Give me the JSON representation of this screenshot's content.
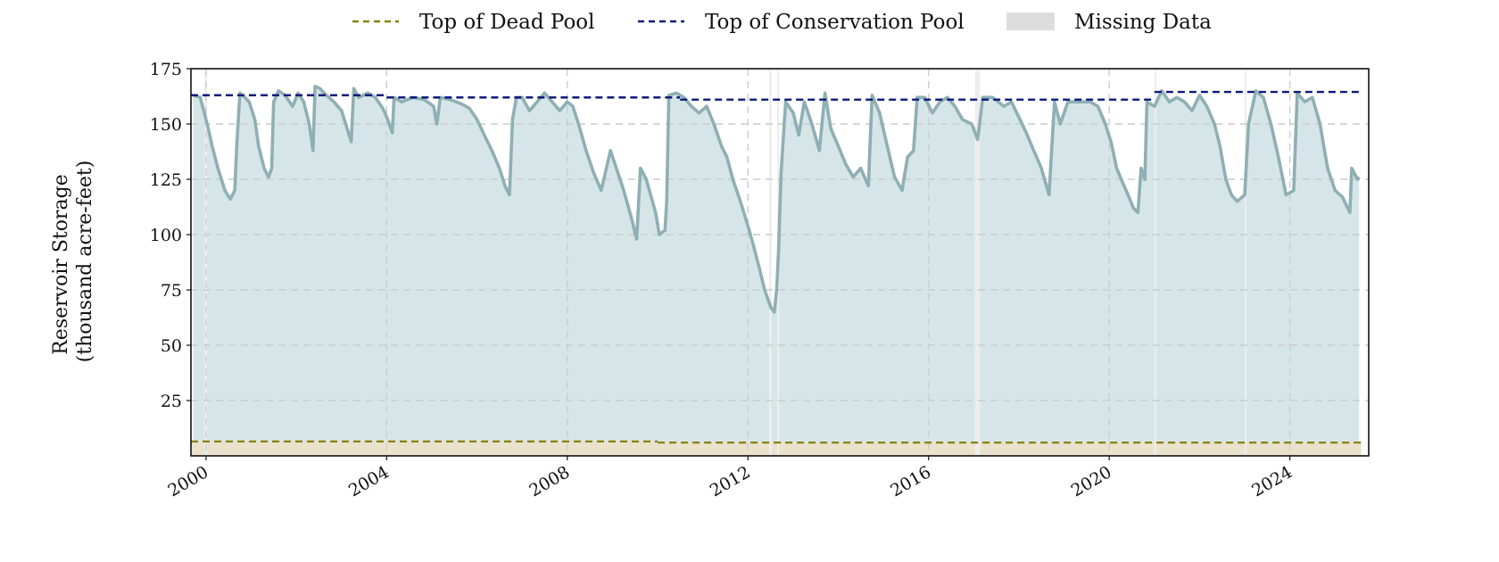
{
  "chart_data": {
    "type": "area",
    "title": "",
    "xlabel": "",
    "ylabel_lines": [
      "Reservoir Storage",
      "(thousand acre-feet)"
    ],
    "x_range": [
      "1999-09-01",
      "2025-09-30"
    ],
    "ylim": [
      0,
      175
    ],
    "y_ticks": [
      25,
      50,
      75,
      100,
      125,
      150,
      175
    ],
    "x_tick_years": [
      2000,
      2004,
      2008,
      2012,
      2016,
      2020,
      2024
    ],
    "grid": true,
    "legend_position": "top-center",
    "legend": [
      {
        "label": "Top of Dead Pool",
        "kind": "dashed-line",
        "color": "#8B8000"
      },
      {
        "label": "Top of Conservation Pool",
        "kind": "dashed-line",
        "color": "#0B1A7A"
      },
      {
        "label": "Missing Data",
        "kind": "patch",
        "color": "#DDDDDD"
      }
    ],
    "colors": {
      "storage_line": "#8FAFB4",
      "storage_fill": "#D6E6E8",
      "dead_pool_fill": "#EAE2CC",
      "missing": "#EDEDED",
      "grid": "#CCCCCC"
    },
    "series": [
      {
        "name": "Reservoir Storage",
        "values_unit": "thousand acre-feet",
        "points": [
          [
            "1999-09-20",
            163
          ],
          [
            "1999-11-15",
            162
          ],
          [
            "2000-01-10",
            150
          ],
          [
            "2000-02-20",
            140
          ],
          [
            "2000-04-01",
            131
          ],
          [
            "2000-06-01",
            120
          ],
          [
            "2000-07-15",
            116
          ],
          [
            "2000-08-20",
            120
          ],
          [
            "2000-09-05",
            140
          ],
          [
            "2000-10-01",
            164
          ],
          [
            "2000-11-10",
            162
          ],
          [
            "2000-12-15",
            160
          ],
          [
            "2001-01-30",
            152
          ],
          [
            "2001-03-01",
            140
          ],
          [
            "2001-04-15",
            130
          ],
          [
            "2001-05-20",
            126
          ],
          [
            "2001-06-15",
            130
          ],
          [
            "2001-07-01",
            160
          ],
          [
            "2001-08-10",
            165
          ],
          [
            "2001-10-01",
            163
          ],
          [
            "2001-12-01",
            158
          ],
          [
            "2002-01-15",
            164
          ],
          [
            "2002-03-01",
            160
          ],
          [
            "2002-04-15",
            150
          ],
          [
            "2002-05-15",
            138
          ],
          [
            "2002-06-01",
            167
          ],
          [
            "2002-07-10",
            166
          ],
          [
            "2002-09-01",
            163
          ],
          [
            "2002-11-01",
            160
          ],
          [
            "2003-01-01",
            156
          ],
          [
            "2003-02-15",
            148
          ],
          [
            "2003-03-20",
            142
          ],
          [
            "2003-04-10",
            166
          ],
          [
            "2003-05-20",
            162
          ],
          [
            "2003-08-01",
            164
          ],
          [
            "2003-10-01",
            162
          ],
          [
            "2003-12-01",
            157
          ],
          [
            "2004-01-10",
            152
          ],
          [
            "2004-02-15",
            146
          ],
          [
            "2004-03-01",
            162
          ],
          [
            "2004-05-01",
            160
          ],
          [
            "2004-08-01",
            162
          ],
          [
            "2004-11-01",
            161
          ],
          [
            "2005-01-15",
            158
          ],
          [
            "2005-02-10",
            150
          ],
          [
            "2005-03-10",
            162
          ],
          [
            "2005-06-01",
            161
          ],
          [
            "2005-09-01",
            159
          ],
          [
            "2005-11-01",
            157
          ],
          [
            "2006-01-01",
            152
          ],
          [
            "2006-03-01",
            145
          ],
          [
            "2006-05-01",
            138
          ],
          [
            "2006-07-01",
            130
          ],
          [
            "2006-08-15",
            122
          ],
          [
            "2006-09-20",
            118
          ],
          [
            "2006-10-15",
            152
          ],
          [
            "2006-11-15",
            162
          ],
          [
            "2007-01-01",
            162
          ],
          [
            "2007-03-01",
            156
          ],
          [
            "2007-05-01",
            160
          ],
          [
            "2007-07-01",
            164
          ],
          [
            "2007-09-01",
            160
          ],
          [
            "2007-11-01",
            156
          ],
          [
            "2008-01-01",
            160
          ],
          [
            "2008-02-15",
            158
          ],
          [
            "2008-04-01",
            150
          ],
          [
            "2008-06-01",
            138
          ],
          [
            "2008-08-01",
            128
          ],
          [
            "2008-10-01",
            120
          ],
          [
            "2008-12-15",
            138
          ],
          [
            "2009-02-01",
            130
          ],
          [
            "2009-04-01",
            120
          ],
          [
            "2009-06-01",
            108
          ],
          [
            "2009-07-15",
            98
          ],
          [
            "2009-08-15",
            130
          ],
          [
            "2009-10-01",
            125
          ],
          [
            "2009-12-15",
            110
          ],
          [
            "2010-01-15",
            100
          ],
          [
            "2010-03-01",
            102
          ],
          [
            "2010-03-15",
            115
          ],
          [
            "2010-04-01",
            163
          ],
          [
            "2010-06-01",
            164
          ],
          [
            "2010-08-01",
            162
          ],
          [
            "2010-10-01",
            158
          ],
          [
            "2010-12-01",
            155
          ],
          [
            "2011-02-01",
            158
          ],
          [
            "2011-04-01",
            150
          ],
          [
            "2011-06-01",
            140
          ],
          [
            "2011-07-15",
            135
          ],
          [
            "2011-09-01",
            125
          ],
          [
            "2011-11-01",
            115
          ],
          [
            "2012-01-01",
            104
          ],
          [
            "2012-02-15",
            95
          ],
          [
            "2012-04-01",
            85
          ],
          [
            "2012-05-15",
            75
          ],
          [
            "2012-06-15",
            70
          ],
          [
            "2012-07-05",
            67
          ],
          [
            "2012-08-01",
            65
          ],
          [
            "2012-08-20",
            75
          ],
          [
            "2012-09-05",
            93
          ],
          [
            "2012-09-25",
            128
          ],
          [
            "2012-11-01",
            160
          ],
          [
            "2013-01-01",
            155
          ],
          [
            "2013-02-15",
            145
          ],
          [
            "2013-04-01",
            160
          ],
          [
            "2013-06-01",
            150
          ],
          [
            "2013-08-01",
            138
          ],
          [
            "2013-09-15",
            164
          ],
          [
            "2013-11-01",
            148
          ],
          [
            "2014-01-01",
            140
          ],
          [
            "2014-03-01",
            132
          ],
          [
            "2014-05-01",
            126
          ],
          [
            "2014-07-01",
            130
          ],
          [
            "2014-09-01",
            122
          ],
          [
            "2014-10-01",
            163
          ],
          [
            "2014-12-01",
            155
          ],
          [
            "2015-02-01",
            140
          ],
          [
            "2015-04-01",
            126
          ],
          [
            "2015-06-01",
            120
          ],
          [
            "2015-07-15",
            135
          ],
          [
            "2015-09-01",
            138
          ],
          [
            "2015-10-01",
            162
          ],
          [
            "2015-12-01",
            162
          ],
          [
            "2016-02-01",
            155
          ],
          [
            "2016-04-01",
            160
          ],
          [
            "2016-06-01",
            162
          ],
          [
            "2016-08-01",
            158
          ],
          [
            "2016-10-01",
            152
          ],
          [
            "2016-12-15",
            150
          ],
          [
            "2017-02-01",
            143
          ],
          [
            "2017-03-15",
            162
          ],
          [
            "2017-06-01",
            162
          ],
          [
            "2017-09-01",
            158
          ],
          [
            "2017-11-01",
            160
          ],
          [
            "2018-01-01",
            153
          ],
          [
            "2018-03-01",
            146
          ],
          [
            "2018-05-01",
            138
          ],
          [
            "2018-07-01",
            130
          ],
          [
            "2018-09-01",
            118
          ],
          [
            "2018-10-15",
            160
          ],
          [
            "2018-12-01",
            150
          ],
          [
            "2019-02-01",
            160
          ],
          [
            "2019-05-01",
            160
          ],
          [
            "2019-08-01",
            160
          ],
          [
            "2019-10-01",
            158
          ],
          [
            "2019-12-01",
            150
          ],
          [
            "2020-01-15",
            142
          ],
          [
            "2020-03-01",
            130
          ],
          [
            "2020-04-15",
            124
          ],
          [
            "2020-06-01",
            118
          ],
          [
            "2020-07-15",
            112
          ],
          [
            "2020-08-20",
            110
          ],
          [
            "2020-09-15",
            130
          ],
          [
            "2020-10-15",
            125
          ],
          [
            "2020-11-01",
            160
          ],
          [
            "2021-01-01",
            158
          ],
          [
            "2021-03-01",
            165
          ],
          [
            "2021-05-01",
            160
          ],
          [
            "2021-07-01",
            162
          ],
          [
            "2021-09-01",
            160
          ],
          [
            "2021-11-01",
            156
          ],
          [
            "2022-01-01",
            163
          ],
          [
            "2022-03-01",
            158
          ],
          [
            "2022-05-01",
            150
          ],
          [
            "2022-06-15",
            140
          ],
          [
            "2022-08-01",
            125
          ],
          [
            "2022-09-15",
            118
          ],
          [
            "2022-11-01",
            115
          ],
          [
            "2023-01-01",
            118
          ],
          [
            "2023-02-01",
            150
          ],
          [
            "2023-04-01",
            165
          ],
          [
            "2023-06-01",
            162
          ],
          [
            "2023-08-01",
            150
          ],
          [
            "2023-10-01",
            135
          ],
          [
            "2023-12-01",
            118
          ],
          [
            "2024-02-01",
            120
          ],
          [
            "2024-03-01",
            164
          ],
          [
            "2024-05-01",
            160
          ],
          [
            "2024-07-01",
            162
          ],
          [
            "2024-09-01",
            150
          ],
          [
            "2024-11-01",
            130
          ],
          [
            "2025-01-01",
            120
          ],
          [
            "2025-03-01",
            117
          ],
          [
            "2025-05-01",
            110
          ],
          [
            "2025-05-15",
            130
          ],
          [
            "2025-07-01",
            125
          ],
          [
            "2025-07-15",
            126
          ]
        ]
      },
      {
        "name": "Top of Conservation Pool",
        "segments": [
          {
            "from": "1999-09-01",
            "to": "2003-12-31",
            "value": 163
          },
          {
            "from": "2004-01-01",
            "to": "2010-06-30",
            "value": 162
          },
          {
            "from": "2010-07-01",
            "to": "2020-12-31",
            "value": 161
          },
          {
            "from": "2021-01-01",
            "to": "2025-07-31",
            "value": 164.5
          }
        ]
      },
      {
        "name": "Top of Dead Pool",
        "segments": [
          {
            "from": "1999-09-01",
            "to": "2010-01-01",
            "value": 6.5
          },
          {
            "from": "2010-01-01",
            "to": "2025-07-31",
            "value": 6
          }
        ]
      }
    ],
    "missing_data": [
      [
        "1999-12-20",
        "2000-01-10"
      ],
      [
        "2012-06-20",
        "2012-07-10"
      ],
      [
        "2012-08-25",
        "2012-09-10"
      ],
      [
        "2017-01-10",
        "2017-02-20"
      ],
      [
        "2021-01-01",
        "2021-01-12"
      ],
      [
        "2023-01-01",
        "2023-01-12"
      ]
    ]
  }
}
